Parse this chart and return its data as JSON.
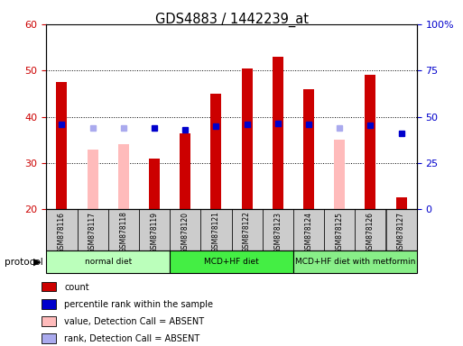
{
  "title": "GDS4883 / 1442239_at",
  "samples": [
    "GSM878116",
    "GSM878117",
    "GSM878118",
    "GSM878119",
    "GSM878120",
    "GSM878121",
    "GSM878122",
    "GSM878123",
    "GSM878124",
    "GSM878125",
    "GSM878126",
    "GSM878127"
  ],
  "count_values": [
    47.5,
    null,
    null,
    31.0,
    36.5,
    45.0,
    50.5,
    53.0,
    46.0,
    null,
    49.0,
    22.5
  ],
  "count_absent_values": [
    null,
    33.0,
    34.0,
    null,
    null,
    null,
    null,
    null,
    null,
    35.0,
    null,
    null
  ],
  "percentile_values": [
    46.0,
    null,
    null,
    44.0,
    43.0,
    45.0,
    46.0,
    46.5,
    46.0,
    null,
    45.5,
    41.0
  ],
  "percentile_absent_values": [
    null,
    44.0,
    44.0,
    null,
    null,
    null,
    null,
    null,
    null,
    44.0,
    null,
    null
  ],
  "groups": [
    {
      "label": "normal diet",
      "start": 0,
      "end": 3
    },
    {
      "label": "MCD+HF diet",
      "start": 4,
      "end": 7
    },
    {
      "label": "MCD+HF diet with metformin",
      "start": 8,
      "end": 11
    }
  ],
  "group_colors": [
    "#bbffbb",
    "#44ee44",
    "#88ee88"
  ],
  "ylim_left": [
    20,
    60
  ],
  "ylim_right": [
    0,
    100
  ],
  "yticks_left": [
    20,
    30,
    40,
    50,
    60
  ],
  "yticks_right": [
    0,
    25,
    50,
    75,
    100
  ],
  "yticklabels_right": [
    "0",
    "25",
    "50",
    "75",
    "100%"
  ],
  "left_axis_color": "#cc0000",
  "right_axis_color": "#0000cc",
  "count_color": "#cc0000",
  "count_absent_color": "#ffbbbb",
  "percentile_color": "#0000cc",
  "percentile_absent_color": "#aaaaee",
  "tick_area_bg": "#cccccc",
  "bar_width": 0.35
}
